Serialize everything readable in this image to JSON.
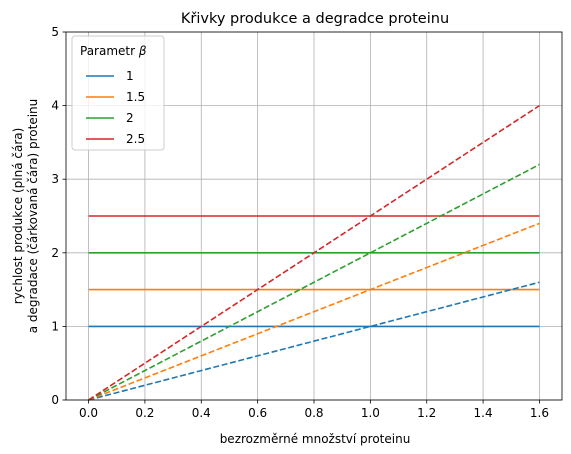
{
  "chart_data": {
    "type": "line",
    "title": "Křivky produkce a degradce proteinu",
    "xlabel": "bezrozměrné množství proteinu",
    "ylabel_line1": "rychlost produkce (plná čára)",
    "ylabel_line2": "a degradace (čárkovaná čára) proteinu",
    "xlim": [
      -0.08,
      1.68
    ],
    "ylim": [
      0,
      5
    ],
    "xticks": [
      "0.0",
      "0.2",
      "0.4",
      "0.6",
      "0.8",
      "1.0",
      "1.2",
      "1.4",
      "1.6"
    ],
    "yticks": [
      "0",
      "1",
      "2",
      "3",
      "4",
      "5"
    ],
    "grid": true,
    "legend": {
      "title_text": "Parametr ",
      "title_symbol": "β",
      "placement": "top-left"
    },
    "x": [
      0.0,
      1.6
    ],
    "series": [
      {
        "name": "1",
        "color": "#1f77b4",
        "production": [
          1,
          1
        ],
        "degradation": [
          0,
          1.6
        ]
      },
      {
        "name": "1.5",
        "color": "#ff7f0e",
        "production": [
          1.5,
          1.5
        ],
        "degradation": [
          0,
          2.4
        ]
      },
      {
        "name": "2",
        "color": "#2ca02c",
        "production": [
          2,
          2
        ],
        "degradation": [
          0,
          3.2
        ]
      },
      {
        "name": "2.5",
        "color": "#d62728",
        "production": [
          2.5,
          2.5
        ],
        "degradation": [
          0,
          4.0
        ]
      }
    ]
  }
}
